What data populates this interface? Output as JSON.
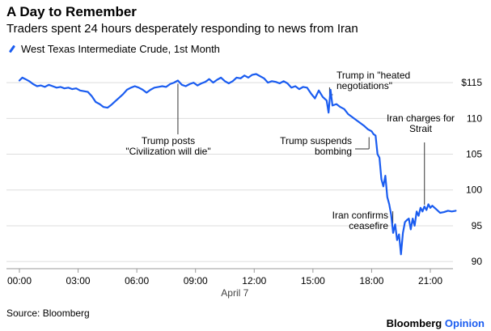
{
  "header": {
    "title": "A Day to Remember",
    "subtitle": "Traders spent 24 hours desperately responding to news from Iran"
  },
  "legend": {
    "label": "West Texas Intermediate Crude, 1st Month"
  },
  "footer": {
    "source": "Source: Bloomberg",
    "brand": "Bloomberg",
    "brand_suffix": "Opinion"
  },
  "colors": {
    "line": "#1a5cf0",
    "grid": "#dddddd",
    "text": "#000000",
    "brand_accent": "#1a5cf0"
  },
  "chart_data": {
    "type": "line",
    "title": "A Day to Remember",
    "subtitle": "Traders spent 24 hours desperately responding to news from Iran",
    "xlabel": "April 7",
    "ylabel": "",
    "xlim": [
      0,
      22.5
    ],
    "ylim": [
      89,
      117.5
    ],
    "grid": true,
    "legend_position": "top-left",
    "x_ticks": [
      {
        "value": 0,
        "label": "00:00"
      },
      {
        "value": 3,
        "label": "03:00"
      },
      {
        "value": 6,
        "label": "06:00"
      },
      {
        "value": 9,
        "label": "09:00"
      },
      {
        "value": 12,
        "label": "12:00"
      },
      {
        "value": 15,
        "label": "15:00"
      },
      {
        "value": 18,
        "label": "18:00"
      },
      {
        "value": 21,
        "label": "21:00"
      }
    ],
    "y_ticks": [
      {
        "value": 90,
        "label": "90"
      },
      {
        "value": 95,
        "label": "95"
      },
      {
        "value": 100,
        "label": "100"
      },
      {
        "value": 105,
        "label": "105"
      },
      {
        "value": 110,
        "label": "110"
      },
      {
        "value": 115,
        "label": "$115"
      }
    ],
    "x_date_label": "April 7",
    "series": [
      {
        "name": "West Texas Intermediate Crude, 1st Month",
        "x": [
          0,
          0.15,
          0.3,
          0.5,
          0.7,
          0.9,
          1.1,
          1.3,
          1.5,
          1.7,
          1.9,
          2.1,
          2.3,
          2.5,
          2.7,
          2.9,
          3.1,
          3.3,
          3.5,
          3.7,
          3.9,
          4.1,
          4.3,
          4.5,
          4.7,
          4.9,
          5.1,
          5.3,
          5.5,
          5.7,
          5.9,
          6.1,
          6.3,
          6.5,
          6.7,
          6.9,
          7.1,
          7.3,
          7.5,
          7.7,
          7.9,
          8.1,
          8.3,
          8.5,
          8.7,
          8.9,
          9.1,
          9.3,
          9.5,
          9.7,
          9.9,
          10.1,
          10.3,
          10.5,
          10.7,
          10.9,
          11.1,
          11.3,
          11.5,
          11.7,
          11.9,
          12.1,
          12.3,
          12.5,
          12.7,
          12.9,
          13.1,
          13.3,
          13.5,
          13.7,
          13.9,
          14.1,
          14.3,
          14.5,
          14.7,
          14.9,
          15.1,
          15.3,
          15.5,
          15.7,
          15.8,
          15.9,
          16.0,
          16.2,
          16.4,
          16.6,
          16.8,
          17.0,
          17.2,
          17.4,
          17.6,
          17.8,
          18.0,
          18.1,
          18.2,
          18.3,
          18.4,
          18.5,
          18.6,
          18.7,
          18.8,
          18.9,
          19.0,
          19.1,
          19.2,
          19.3,
          19.4,
          19.5,
          19.6,
          19.7,
          19.8,
          19.9,
          20.0,
          20.1,
          20.2,
          20.3,
          20.4,
          20.5,
          20.6,
          20.7,
          20.8,
          20.9,
          21.0,
          21.1,
          21.3,
          21.5,
          21.7,
          21.9,
          22.1,
          22.3
        ],
        "y": [
          115.3,
          115.7,
          115.5,
          115.2,
          114.8,
          114.5,
          114.6,
          114.4,
          114.7,
          114.5,
          114.3,
          114.4,
          114.2,
          114.3,
          114.1,
          114.2,
          113.9,
          113.8,
          113.7,
          113.1,
          112.3,
          112.0,
          111.6,
          111.5,
          111.9,
          112.4,
          112.9,
          113.4,
          114.0,
          114.3,
          114.5,
          114.3,
          114.0,
          113.6,
          114.0,
          114.3,
          114.4,
          114.5,
          114.4,
          114.8,
          115.0,
          115.3,
          114.7,
          114.5,
          114.8,
          115.0,
          114.6,
          114.9,
          115.1,
          115.5,
          115.0,
          115.4,
          115.7,
          115.2,
          114.9,
          115.2,
          115.7,
          115.6,
          116.0,
          115.7,
          116.1,
          116.2,
          115.9,
          115.6,
          115.0,
          115.2,
          115.1,
          114.9,
          115.2,
          114.9,
          114.3,
          114.5,
          114.1,
          114.4,
          114.3,
          113.5,
          112.8,
          113.9,
          113.0,
          112.5,
          110.8,
          114.0,
          111.8,
          112.0,
          111.6,
          111.3,
          110.6,
          110.2,
          109.8,
          109.4,
          109.0,
          108.5,
          108.2,
          107.8,
          107.6,
          105.0,
          104.5,
          101.5,
          100.5,
          102.0,
          99.0,
          98.0,
          96.5,
          94.0,
          95.2,
          93.0,
          93.8,
          91.0,
          94.0,
          95.5,
          95.8,
          96.0,
          94.5,
          96.0,
          95.0,
          97.0,
          96.4,
          97.5,
          97.0,
          97.7,
          97.2,
          98.0,
          97.5,
          97.8,
          97.3,
          96.8,
          96.9,
          97.1,
          97.0,
          97.1
        ]
      }
    ],
    "annotations": [
      {
        "lines": [
          "Trump posts",
          "\"Civilization will die\""
        ],
        "x": 8.1,
        "y": 115.3
      },
      {
        "lines": [
          "Trump in \"heated",
          "negotiations\""
        ],
        "x": 15.85,
        "y": 114.0
      },
      {
        "lines": [
          "Trump suspends",
          "bombing"
        ],
        "x": 17.95,
        "y": 107.6
      },
      {
        "lines": [
          "Iran charges for",
          "Strait"
        ],
        "x": 20.7,
        "y": 97.7
      },
      {
        "lines": [
          "Iran confirms",
          "ceasefire"
        ],
        "x": 19.0,
        "y": 96.8
      }
    ]
  }
}
